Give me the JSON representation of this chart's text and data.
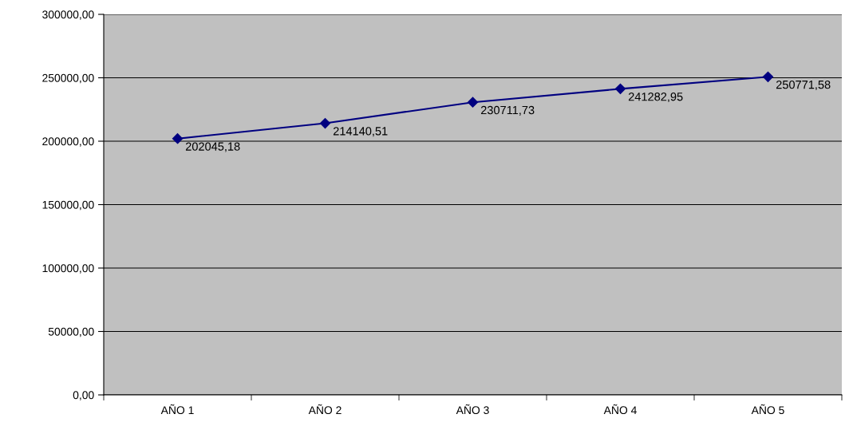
{
  "chart_data": {
    "type": "line",
    "categories": [
      "AÑO 1",
      "AÑO 2",
      "AÑO 3",
      "AÑO 4",
      "AÑO 5"
    ],
    "series": [
      {
        "color": "#000080",
        "values": [
          202045.18,
          214140.51,
          230711.73,
          241282.95,
          250771.58
        ],
        "value_labels": [
          "202045,18",
          "214140,51",
          "230711,73",
          "241282,95",
          "250771,58"
        ]
      }
    ],
    "ylim": [
      0,
      300000
    ],
    "yticks": [
      {
        "value": 0,
        "label": "0,00"
      },
      {
        "value": 50000,
        "label": "50000,00"
      },
      {
        "value": 100000,
        "label": "100000,00"
      },
      {
        "value": 150000,
        "label": "150000,00"
      },
      {
        "value": 200000,
        "label": "200000,00"
      },
      {
        "value": 250000,
        "label": "250000,00"
      },
      {
        "value": 300000,
        "label": "300000,00"
      }
    ],
    "grid": "y",
    "marker": "diamond",
    "line_style": "solid"
  }
}
